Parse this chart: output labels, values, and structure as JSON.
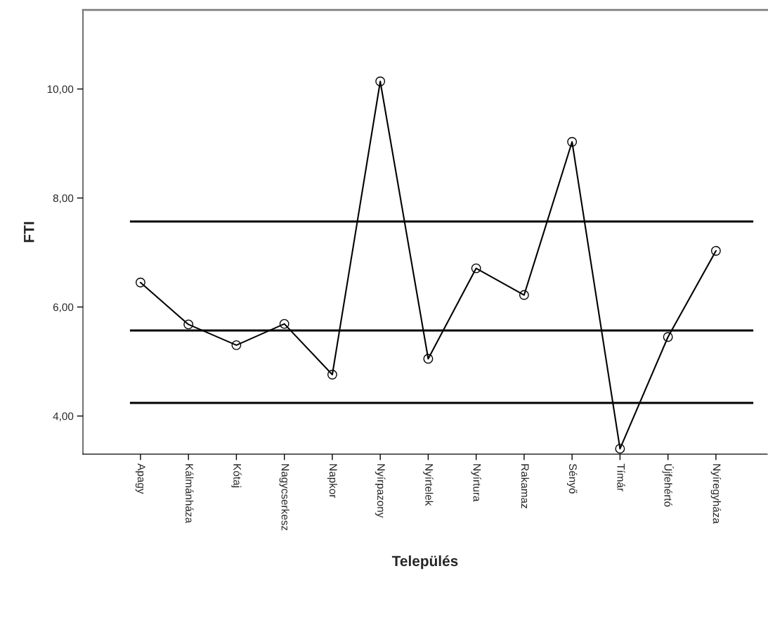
{
  "chart_data": {
    "type": "line",
    "xlabel": "Település",
    "ylabel": "FTI",
    "categories": [
      "Apagy",
      "Kálmánháza",
      "Kótaj",
      "Nagycserkesz",
      "Napkor",
      "Nyírpazony",
      "Nyírtelek",
      "Nyírtura",
      "Rakamaz",
      "Sényő",
      "Tímár",
      "Újfehértó",
      "Nyíregyháza"
    ],
    "series": [
      {
        "color": "#000000",
        "values": [
          6.45,
          5.68,
          5.3,
          5.69,
          4.76,
          10.14,
          5.05,
          6.71,
          6.22,
          9.03,
          3.4,
          5.45,
          7.03
        ]
      }
    ],
    "marker": "circle",
    "line_style": "solid",
    "grid": false,
    "legend": false,
    "ylim": [
      3.3,
      11.45
    ],
    "yticks": [
      {
        "value": 4,
        "label": "4,00"
      },
      {
        "value": 6,
        "label": "6,00"
      },
      {
        "value": 8,
        "label": "8,00"
      },
      {
        "value": 10,
        "label": "10,00"
      }
    ],
    "ref_lines": [
      {
        "axis": "y",
        "value": 7.57,
        "color": "#000000"
      },
      {
        "axis": "y",
        "value": 5.57,
        "color": "#000000"
      },
      {
        "axis": "y",
        "value": 4.24,
        "color": "#000000"
      }
    ]
  }
}
